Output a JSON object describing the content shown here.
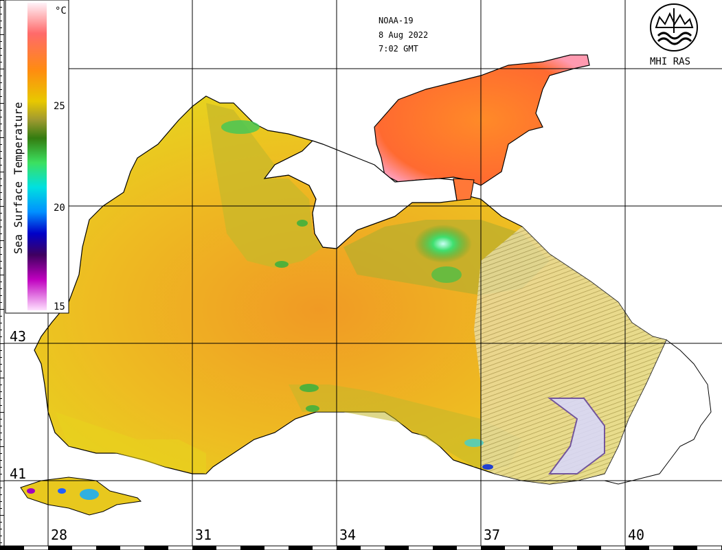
{
  "header": {
    "satellite": "NOAA-19",
    "date": "8 Aug 2022",
    "time": "7:02 GMT"
  },
  "logo": {
    "text": "MHI RAS",
    "icon": "mhi-ras-emblem-icon"
  },
  "colorbar": {
    "title": "Sea Surface Temperature",
    "unit": "°C",
    "ticks": [
      "25",
      "20",
      "15"
    ],
    "colors": [
      "#ffe6f2",
      "#ff7070",
      "#ff5020",
      "#ff8c00",
      "#f0c800",
      "#c8c820",
      "#aaa030",
      "#3c8c14",
      "#28d228",
      "#50f0a0",
      "#00e6e6",
      "#00a0ff",
      "#0000e6",
      "#50007a",
      "#b400b4",
      "#ff8cff",
      "#ffe6ff"
    ]
  },
  "axes": {
    "lon_labels": [
      "28",
      "31",
      "34",
      "37",
      "40"
    ],
    "lat_labels": [
      "43",
      "41"
    ]
  },
  "map_colors": {
    "land": "#ffffff",
    "coast": "#000000",
    "sea_warm": "#f5a020",
    "sea_mid": "#e8c81e",
    "sea_cool": "#b4b428",
    "azov": "#ff7830",
    "eddy_green": "#28c83c",
    "eddy_cyan": "#9cf0e0",
    "no_data_hatch": "#a0a0a0"
  }
}
